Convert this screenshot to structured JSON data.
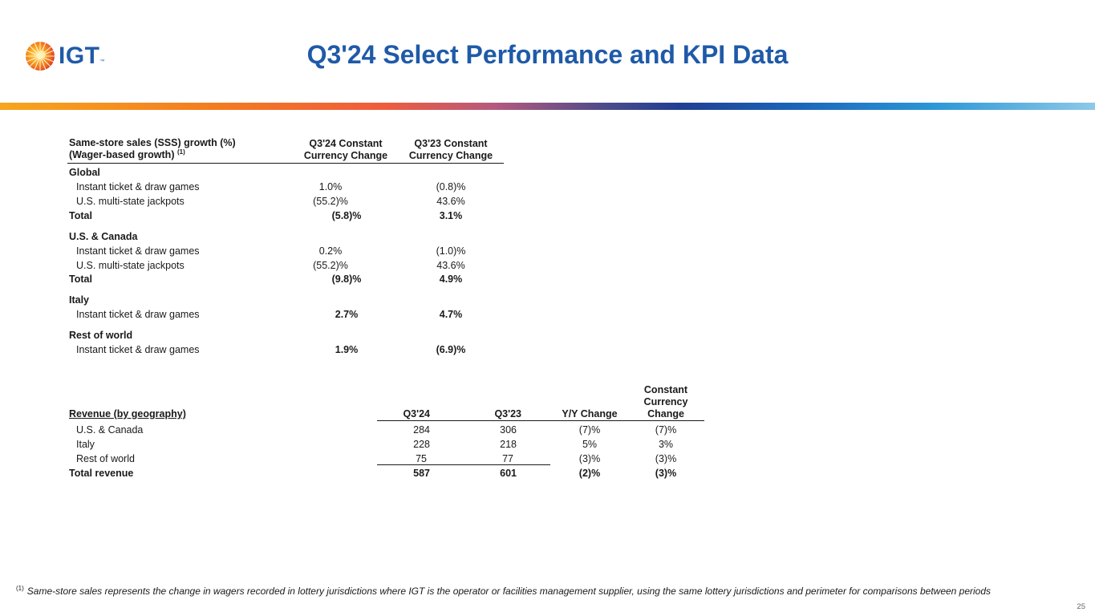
{
  "header": {
    "logo_text": "IGT",
    "logo_tm": "™",
    "title": "Q3'24 Select Performance and KPI Data"
  },
  "sss_table": {
    "header_line1": "Same-store sales (SSS) growth (%)",
    "header_line2": "(Wager-based growth)",
    "header_sup": "(1)",
    "col1_line1": "Q3'24 Constant",
    "col1_line2": "Currency Change",
    "col2_line1": "Q3'23 Constant",
    "col2_line2": "Currency Change",
    "sections": [
      {
        "name": "Global",
        "rows": [
          {
            "label": "Instant ticket & draw games",
            "q324": "1.0%",
            "q323": "(0.8)%"
          },
          {
            "label": "U.S. multi-state jackpots",
            "q324": "(55.2)%",
            "q323": "43.6%"
          },
          {
            "label": "Total",
            "q324": "(5.8)%",
            "q323": "3.1%"
          }
        ]
      },
      {
        "name": "U.S. & Canada",
        "rows": [
          {
            "label": "Instant ticket & draw games",
            "q324": "0.2%",
            "q323": "(1.0)%"
          },
          {
            "label": "U.S. multi-state jackpots",
            "q324": "(55.2)%",
            "q323": "43.6%"
          },
          {
            "label": "Total",
            "q324": "(9.8)%",
            "q323": "4.9%"
          }
        ]
      },
      {
        "name": "Italy",
        "rows": [
          {
            "label": "Instant ticket & draw games",
            "q324": "2.7%",
            "q323": "4.7%"
          }
        ]
      },
      {
        "name": "Rest of world",
        "rows": [
          {
            "label": "Instant ticket & draw games",
            "q324": "1.9%",
            "q323": "(6.9)%"
          }
        ]
      }
    ]
  },
  "revenue_table": {
    "header_label": "Revenue (by geography)",
    "col_q324": "Q3'24",
    "col_q323": "Q3'23",
    "col_yoy": "Y/Y Change",
    "col_cc_line1": "Constant",
    "col_cc_line2": "Currency",
    "col_cc_line3": "Change",
    "rows": [
      {
        "label": "U.S. & Canada",
        "q324": "284",
        "q323": "306",
        "yoy": "(7)%",
        "cc": "(7)%"
      },
      {
        "label": "Italy",
        "q324": "228",
        "q323": "218",
        "yoy": "5%",
        "cc": "3%"
      },
      {
        "label": "Rest of world",
        "q324": "75",
        "q323": "77",
        "yoy": "(3)%",
        "cc": "(3)%"
      },
      {
        "label": "Total revenue",
        "q324": "587",
        "q323": "601",
        "yoy": "(2)%",
        "cc": "(3)%"
      }
    ]
  },
  "footnote": {
    "marker": "(1)",
    "text": "Same-store sales represents the change in wagers recorded in lottery jurisdictions where IGT is the operator or facilities management supplier, using the same lottery jurisdictions and perimeter for comparisons between periods"
  },
  "page_number": "25",
  "colors": {
    "brand_blue": "#1f5aa8"
  }
}
